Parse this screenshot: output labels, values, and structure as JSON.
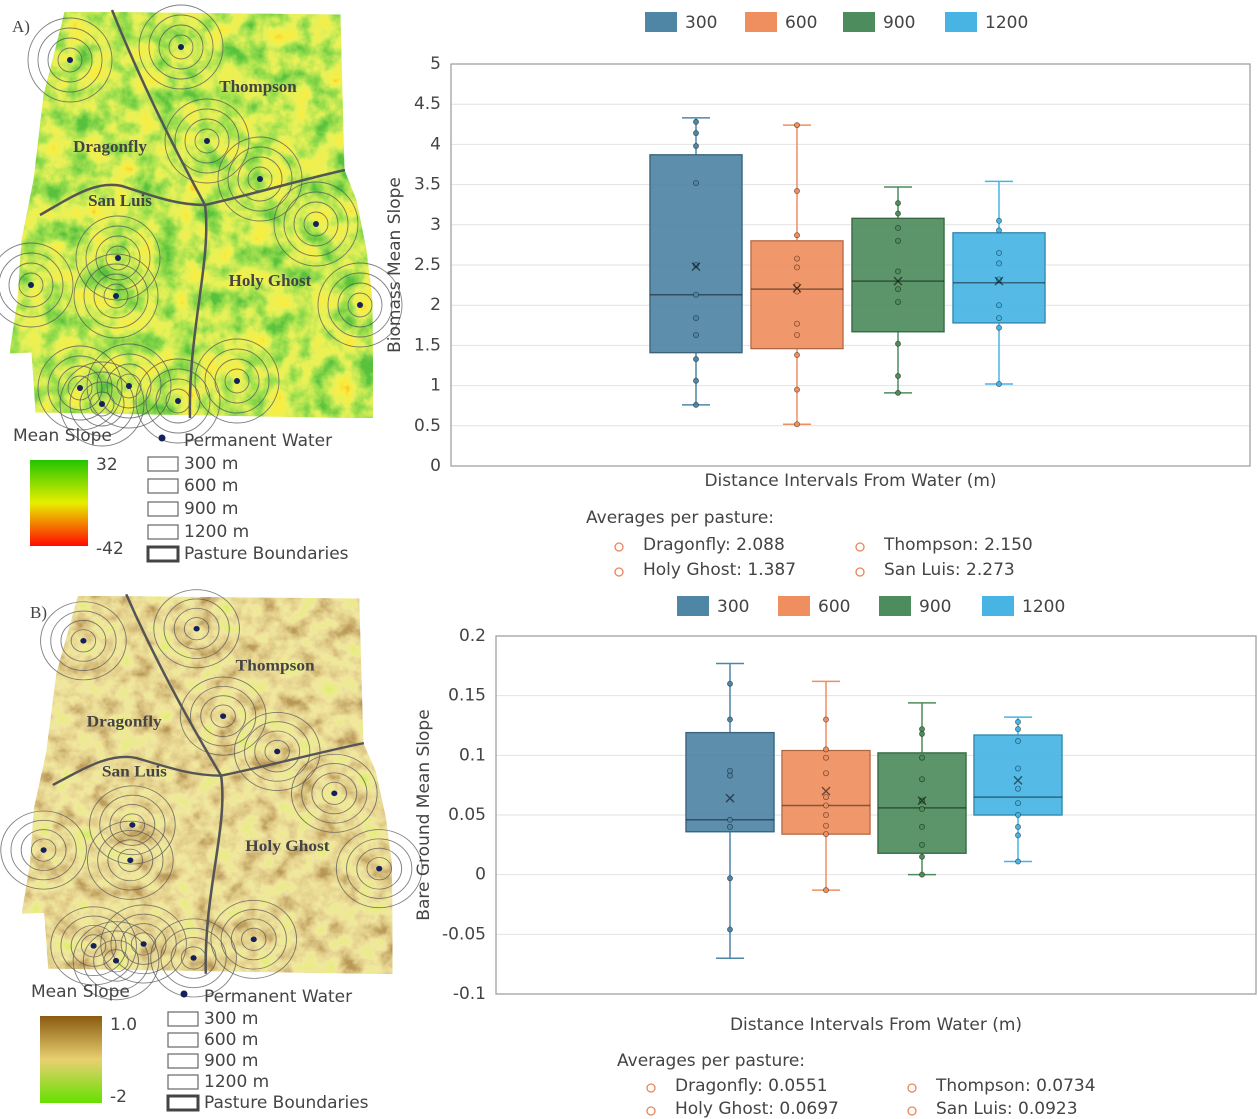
{
  "maps": [
    {
      "label": "A)",
      "pastures": [
        "Thompson",
        "Dragonfly",
        "San Luis",
        "Holy Ghost"
      ],
      "legend": {
        "title": "Mean Slope",
        "max_label": "32",
        "min_label": "-42",
        "water": "Permanent Water",
        "rings": [
          "300 m",
          "600 m",
          "900 m",
          "1200 m"
        ],
        "boundaries": "Pasture Boundaries",
        "colorbar": [
          "#22c400",
          "#e8ef00",
          "#ff0a00"
        ]
      }
    },
    {
      "label": "B)",
      "pastures": [
        "Thompson",
        "Dragonfly",
        "San Luis",
        "Holy Ghost"
      ],
      "legend": {
        "title": "Mean Slope",
        "max_label": "1.0",
        "min_label": "-2",
        "water": "Permanent Water",
        "rings": [
          "300 m",
          "600 m",
          "900 m",
          "1200 m"
        ],
        "boundaries": "Pasture Boundaries",
        "colorbar": [
          "#8a5a10",
          "#e8d070",
          "#66e000"
        ]
      }
    }
  ],
  "chart_data": [
    {
      "type": "box",
      "y_label": "Biomass Mean Slope",
      "x_label": "Distance Intervals From Water (m)",
      "ylim": [
        0,
        5
      ],
      "yticks": [
        0,
        0.5,
        1,
        1.5,
        2,
        2.5,
        3,
        3.5,
        4,
        4.5,
        5
      ],
      "grid": true,
      "legend": "top",
      "series": [
        {
          "name": "300",
          "color": "#4f86a6",
          "min": 0.76,
          "q1": 1.41,
          "median": 2.13,
          "q3": 3.87,
          "max": 4.33,
          "mean": 2.48,
          "points": [
            4.28,
            4.14,
            3.98,
            3.52,
            2.5,
            2.13,
            1.84,
            1.63,
            1.33,
            1.06,
            0.76
          ]
        },
        {
          "name": "600",
          "color": "#ef8f5f",
          "min": 0.52,
          "q1": 1.46,
          "median": 2.2,
          "q3": 2.8,
          "max": 4.24,
          "mean": 2.21,
          "points": [
            4.24,
            3.42,
            2.87,
            2.58,
            2.47,
            2.25,
            2.17,
            1.77,
            1.63,
            1.38,
            0.95,
            0.52
          ]
        },
        {
          "name": "900",
          "color": "#4d8c5c",
          "min": 0.91,
          "q1": 1.67,
          "median": 2.3,
          "q3": 3.08,
          "max": 3.47,
          "mean": 2.3,
          "points": [
            3.27,
            3.14,
            2.96,
            2.8,
            2.42,
            2.2,
            2.04,
            1.52,
            1.12,
            0.91
          ]
        },
        {
          "name": "1200",
          "color": "#47b4e4",
          "min": 1.02,
          "q1": 1.78,
          "median": 2.28,
          "q3": 2.9,
          "max": 3.54,
          "mean": 2.3,
          "points": [
            3.05,
            2.93,
            2.65,
            2.52,
            2.32,
            2.0,
            1.84,
            1.72,
            1.02
          ]
        }
      ],
      "annotation": {
        "title": "Averages per pasture:",
        "items": [
          "Dragonfly: 2.088",
          "Thompson: 2.150",
          "Holy Ghost: 1.387",
          "San Luis: 2.273"
        ]
      }
    },
    {
      "type": "box",
      "y_label": "Bare Ground Mean Slope",
      "x_label": "Distance Intervals From Water (m)",
      "ylim": [
        -0.1,
        0.2
      ],
      "yticks": [
        -0.1,
        -0.05,
        0,
        0.05,
        0.1,
        0.15,
        0.2
      ],
      "grid": true,
      "legend": "top",
      "series": [
        {
          "name": "300",
          "color": "#4f86a6",
          "min": -0.07,
          "q1": 0.036,
          "median": 0.046,
          "q3": 0.119,
          "max": 0.177,
          "mean": 0.064,
          "points": [
            0.16,
            0.13,
            0.087,
            0.083,
            0.046,
            0.04,
            -0.003,
            -0.046
          ]
        },
        {
          "name": "600",
          "color": "#ef8f5f",
          "min": -0.013,
          "q1": 0.034,
          "median": 0.058,
          "q3": 0.104,
          "max": 0.162,
          "mean": 0.07,
          "points": [
            0.13,
            0.105,
            0.098,
            0.085,
            0.065,
            0.058,
            0.05,
            0.041,
            0.034,
            -0.013
          ]
        },
        {
          "name": "900",
          "color": "#4d8c5c",
          "min": 0,
          "q1": 0.018,
          "median": 0.056,
          "q3": 0.102,
          "max": 0.144,
          "mean": 0.062,
          "points": [
            0.122,
            0.118,
            0.098,
            0.08,
            0.062,
            0.055,
            0.04,
            0.025,
            0.015,
            0
          ]
        },
        {
          "name": "1200",
          "color": "#47b4e4",
          "min": 0.011,
          "q1": 0.05,
          "median": 0.065,
          "q3": 0.117,
          "max": 0.132,
          "mean": 0.079,
          "points": [
            0.128,
            0.122,
            0.112,
            0.089,
            0.072,
            0.06,
            0.05,
            0.04,
            0.033,
            0.011
          ]
        }
      ],
      "annotation": {
        "title": "Averages per pasture:",
        "items": [
          "Dragonfly: 0.0551",
          "Thompson: 0.0734",
          "Holy Ghost: 0.0697",
          "San Luis: 0.0923"
        ]
      }
    }
  ]
}
